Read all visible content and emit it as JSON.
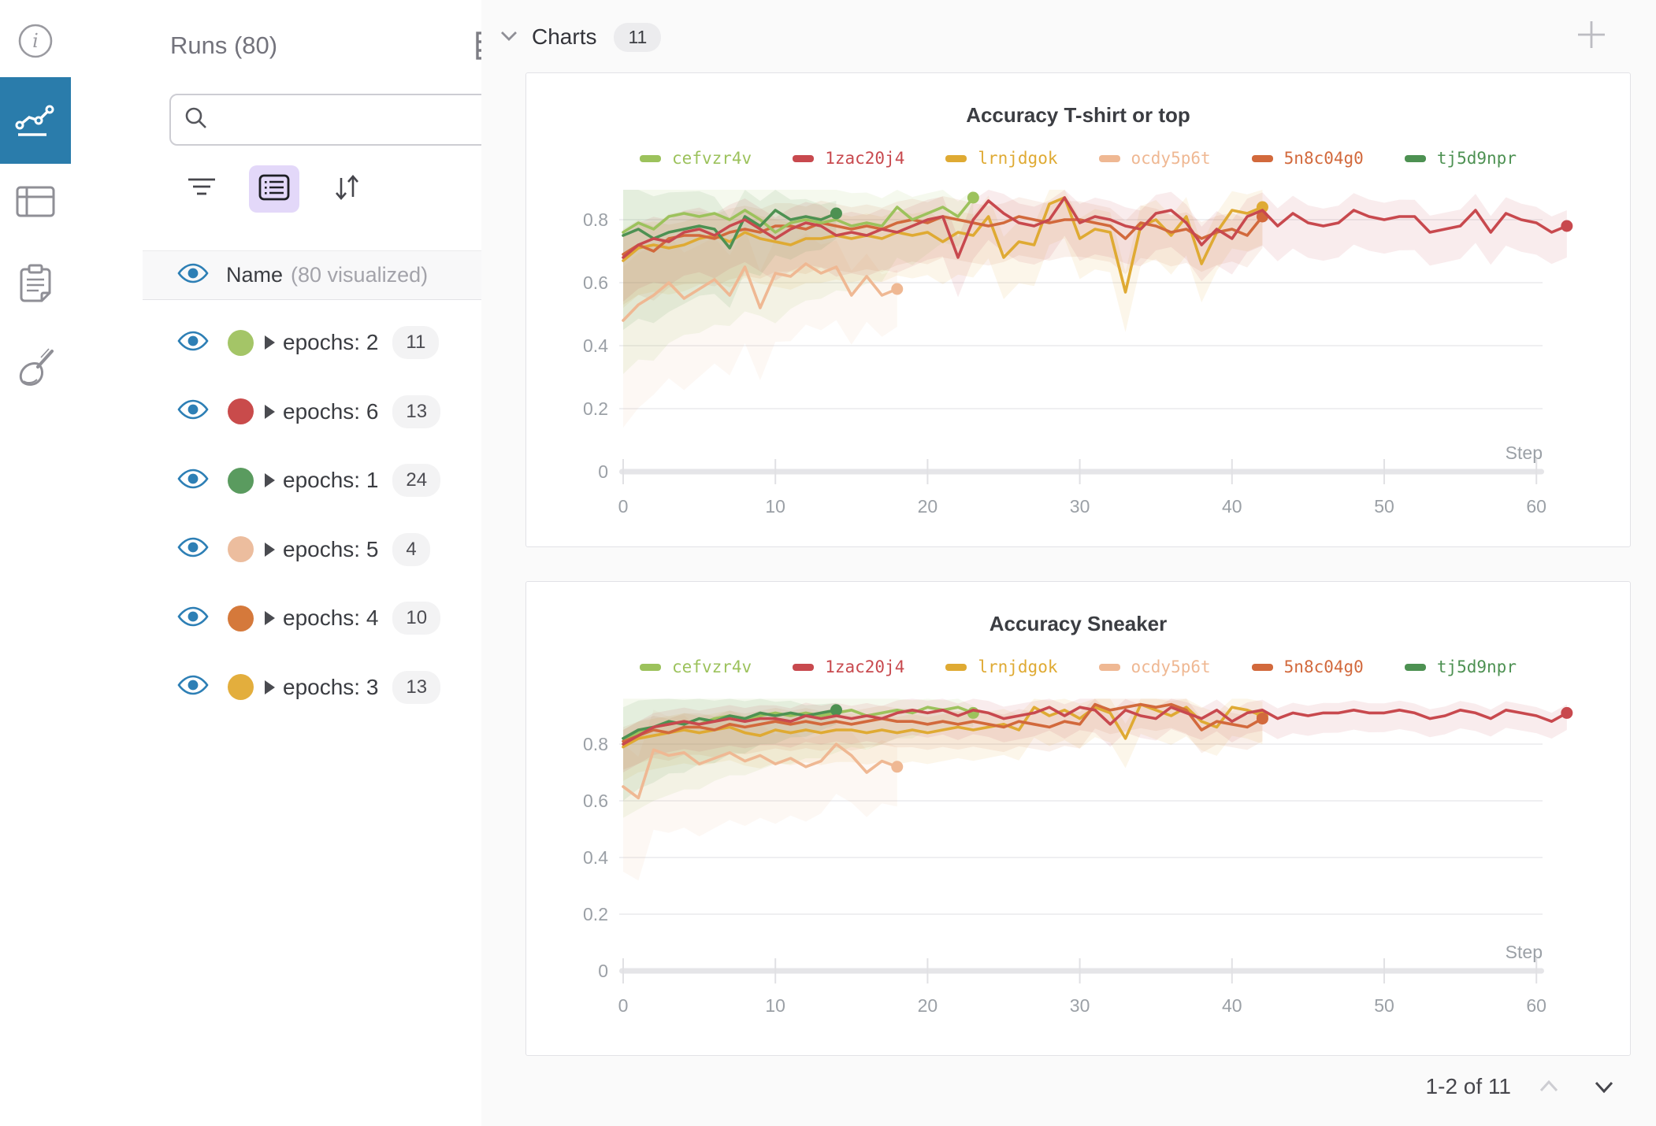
{
  "rail": {
    "icons": [
      {
        "label": "info"
      },
      {
        "label": "workspace-charts",
        "active": true
      },
      {
        "label": "runs-table"
      },
      {
        "label": "logs"
      },
      {
        "label": "sweeps"
      }
    ]
  },
  "runs_panel": {
    "title": "Runs (80)",
    "search": {
      "placeholder": "",
      "value": ""
    },
    "header_row": {
      "name_label": "Name",
      "visualized_label": "(80 visualized)"
    },
    "rows": [
      {
        "label": "epochs: 2",
        "count": "11",
        "color": "#a4c567"
      },
      {
        "label": "epochs: 6",
        "count": "13",
        "color": "#c94b4b"
      },
      {
        "label": "epochs: 1",
        "count": "24",
        "color": "#5a9b5f"
      },
      {
        "label": "epochs: 5",
        "count": "4",
        "color": "#ecbd9e"
      },
      {
        "label": "epochs: 4",
        "count": "10",
        "color": "#d5793b"
      },
      {
        "label": "epochs: 3",
        "count": "13",
        "color": "#e3ae3d"
      }
    ]
  },
  "charts_section": {
    "title": "Charts",
    "count_badge": "11",
    "pagination": {
      "label": "1-2 of 11"
    }
  },
  "chart_data": [
    {
      "type": "line",
      "title": "Accuracy T-shirt or top",
      "xlabel": "Step",
      "x_ticks": [
        0,
        10,
        20,
        30,
        40,
        50,
        60
      ],
      "y_ticks": [
        0,
        0.2,
        0.4,
        0.6,
        0.8
      ],
      "xlim": [
        0,
        62
      ],
      "ylim": [
        0,
        0.95
      ],
      "grid": true,
      "legend_position": "top-center",
      "legend": [
        {
          "name": "cefvzr4v",
          "color": "#9cc25c"
        },
        {
          "name": "1zac20j4",
          "color": "#c8494e"
        },
        {
          "name": "lrnjdgok",
          "color": "#dfaa33"
        },
        {
          "name": "ocdy5p6t",
          "color": "#efb893"
        },
        {
          "name": "5n8c04g0",
          "color": "#d2693c"
        },
        {
          "name": "tj5d9npr",
          "color": "#4d9152"
        }
      ],
      "series": [
        {
          "name": "ocdy5p6t",
          "color": "#efb893",
          "band": [
            0.34,
            0.12
          ],
          "values": [
            0.48,
            0.53,
            0.56,
            0.6,
            0.55,
            0.58,
            0.61,
            0.56,
            0.65,
            0.52,
            0.63,
            0.62,
            0.66,
            0.63,
            0.65,
            0.56,
            0.62,
            0.56,
            0.58
          ]
        },
        {
          "name": "lrnjdgok",
          "color": "#dfaa33",
          "band": [
            0.15,
            0.12
          ],
          "values": [
            0.67,
            0.71,
            0.72,
            0.71,
            0.72,
            0.74,
            0.75,
            0.73,
            0.76,
            0.74,
            0.73,
            0.72,
            0.74,
            0.74,
            0.75,
            0.74,
            0.75,
            0.74,
            0.76,
            0.75,
            0.76,
            0.73,
            0.76,
            0.75,
            0.81,
            0.68,
            0.73,
            0.72,
            0.85,
            0.87,
            0.74,
            0.77,
            0.76,
            0.57,
            0.78,
            0.8,
            0.75,
            0.81,
            0.66,
            0.76,
            0.83,
            0.82,
            0.84
          ]
        },
        {
          "name": "5n8c04g0",
          "color": "#d2693c",
          "band": [
            0.16,
            0.1
          ],
          "values": [
            0.69,
            0.72,
            0.7,
            0.74,
            0.75,
            0.75,
            0.74,
            0.76,
            0.77,
            0.76,
            0.78,
            0.78,
            0.77,
            0.79,
            0.78,
            0.77,
            0.78,
            0.77,
            0.79,
            0.8,
            0.79,
            0.81,
            0.8,
            0.79,
            0.78,
            0.79,
            0.81,
            0.8,
            0.79,
            0.8,
            0.8,
            0.79,
            0.78,
            0.74,
            0.79,
            0.78,
            0.76,
            0.77,
            0.74,
            0.76,
            0.77,
            0.75,
            0.81
          ]
        },
        {
          "name": "cefvzr4v",
          "color": "#9cc25c",
          "band": [
            0.45,
            0.08
          ],
          "values": [
            0.76,
            0.79,
            0.77,
            0.81,
            0.82,
            0.81,
            0.82,
            0.8,
            0.83,
            0.8,
            0.76,
            0.79,
            0.8,
            0.79,
            0.8,
            0.78,
            0.79,
            0.78,
            0.84,
            0.8,
            0.82,
            0.84,
            0.81,
            0.87
          ]
        },
        {
          "name": "tj5d9npr",
          "color": "#4d9152",
          "band": [
            0.3,
            0.08
          ],
          "values": [
            0.75,
            0.77,
            0.74,
            0.76,
            0.77,
            0.78,
            0.77,
            0.71,
            0.81,
            0.78,
            0.83,
            0.8,
            0.81,
            0.8,
            0.82
          ]
        },
        {
          "name": "1zac20j4",
          "color": "#c8494e",
          "band": [
            0.14,
            0.1
          ],
          "values": [
            0.68,
            0.72,
            0.74,
            0.73,
            0.76,
            0.77,
            0.75,
            0.78,
            0.8,
            0.77,
            0.74,
            0.77,
            0.79,
            0.78,
            0.75,
            0.76,
            0.75,
            0.77,
            0.76,
            0.78,
            0.8,
            0.81,
            0.68,
            0.8,
            0.86,
            0.82,
            0.79,
            0.78,
            0.8,
            0.87,
            0.79,
            0.81,
            0.8,
            0.78,
            0.77,
            0.82,
            0.83,
            0.79,
            0.72,
            0.77,
            0.74,
            0.81,
            0.83,
            0.78,
            0.82,
            0.79,
            0.78,
            0.79,
            0.83,
            0.81,
            0.8,
            0.81,
            0.81,
            0.76,
            0.77,
            0.78,
            0.83,
            0.76,
            0.82,
            0.8,
            0.79,
            0.76,
            0.78
          ]
        }
      ]
    },
    {
      "type": "line",
      "title": "Accuracy Sneaker",
      "xlabel": "Step",
      "x_ticks": [
        0,
        10,
        20,
        30,
        40,
        50,
        60
      ],
      "y_ticks": [
        0,
        0.2,
        0.4,
        0.6,
        0.8
      ],
      "xlim": [
        0,
        62
      ],
      "ylim": [
        0,
        0.96
      ],
      "grid": true,
      "legend_position": "top-center",
      "legend": [
        {
          "name": "cefvzr4v",
          "color": "#9cc25c"
        },
        {
          "name": "1zac20j4",
          "color": "#c8494e"
        },
        {
          "name": "lrnjdgok",
          "color": "#dfaa33"
        },
        {
          "name": "ocdy5p6t",
          "color": "#efb893"
        },
        {
          "name": "5n8c04g0",
          "color": "#d2693c"
        },
        {
          "name": "tj5d9npr",
          "color": "#4d9152"
        }
      ],
      "series": [
        {
          "name": "ocdy5p6t",
          "color": "#efb893",
          "band": [
            0.3,
            0.14
          ],
          "values": [
            0.65,
            0.61,
            0.78,
            0.76,
            0.77,
            0.73,
            0.75,
            0.77,
            0.74,
            0.76,
            0.73,
            0.75,
            0.72,
            0.74,
            0.8,
            0.76,
            0.7,
            0.74,
            0.72
          ]
        },
        {
          "name": "lrnjdgok",
          "color": "#dfaa33",
          "band": [
            0.12,
            0.1
          ],
          "values": [
            0.79,
            0.82,
            0.83,
            0.84,
            0.85,
            0.84,
            0.85,
            0.86,
            0.84,
            0.83,
            0.85,
            0.84,
            0.85,
            0.84,
            0.85,
            0.85,
            0.84,
            0.85,
            0.84,
            0.85,
            0.84,
            0.85,
            0.86,
            0.85,
            0.86,
            0.87,
            0.85,
            0.93,
            0.9,
            0.92,
            0.89,
            0.93,
            0.91,
            0.82,
            0.94,
            0.92,
            0.9,
            0.93,
            0.88,
            0.86,
            0.93,
            0.92,
            0.9
          ]
        },
        {
          "name": "5n8c04g0",
          "color": "#d2693c",
          "band": [
            0.1,
            0.08
          ],
          "values": [
            0.81,
            0.83,
            0.85,
            0.84,
            0.86,
            0.86,
            0.85,
            0.87,
            0.86,
            0.87,
            0.88,
            0.87,
            0.88,
            0.87,
            0.88,
            0.87,
            0.88,
            0.89,
            0.88,
            0.88,
            0.87,
            0.88,
            0.87,
            0.88,
            0.87,
            0.86,
            0.88,
            0.87,
            0.86,
            0.88,
            0.87,
            0.94,
            0.92,
            0.93,
            0.94,
            0.93,
            0.94,
            0.92,
            0.85,
            0.88,
            0.87,
            0.86,
            0.89
          ]
        },
        {
          "name": "cefvzr4v",
          "color": "#9cc25c",
          "band": [
            0.28,
            0.05
          ],
          "values": [
            0.82,
            0.84,
            0.86,
            0.87,
            0.88,
            0.87,
            0.89,
            0.9,
            0.89,
            0.9,
            0.91,
            0.9,
            0.91,
            0.9,
            0.91,
            0.92,
            0.9,
            0.91,
            0.92,
            0.91,
            0.93,
            0.92,
            0.93,
            0.91
          ]
        },
        {
          "name": "tj5d9npr",
          "color": "#4d9152",
          "band": [
            0.22,
            0.05
          ],
          "values": [
            0.82,
            0.85,
            0.86,
            0.88,
            0.87,
            0.89,
            0.88,
            0.9,
            0.89,
            0.91,
            0.9,
            0.91,
            0.9,
            0.91,
            0.92
          ]
        },
        {
          "name": "1zac20j4",
          "color": "#c8494e",
          "band": [
            0.1,
            0.06
          ],
          "values": [
            0.8,
            0.83,
            0.86,
            0.87,
            0.88,
            0.87,
            0.88,
            0.89,
            0.88,
            0.89,
            0.89,
            0.88,
            0.9,
            0.89,
            0.9,
            0.89,
            0.9,
            0.89,
            0.91,
            0.92,
            0.91,
            0.92,
            0.9,
            0.92,
            0.91,
            0.89,
            0.9,
            0.91,
            0.93,
            0.9,
            0.93,
            0.92,
            0.87,
            0.92,
            0.9,
            0.89,
            0.93,
            0.91,
            0.89,
            0.92,
            0.88,
            0.91,
            0.92,
            0.89,
            0.91,
            0.9,
            0.91,
            0.91,
            0.92,
            0.91,
            0.91,
            0.92,
            0.91,
            0.89,
            0.9,
            0.92,
            0.91,
            0.89,
            0.92,
            0.91,
            0.9,
            0.88,
            0.91
          ]
        }
      ]
    }
  ]
}
